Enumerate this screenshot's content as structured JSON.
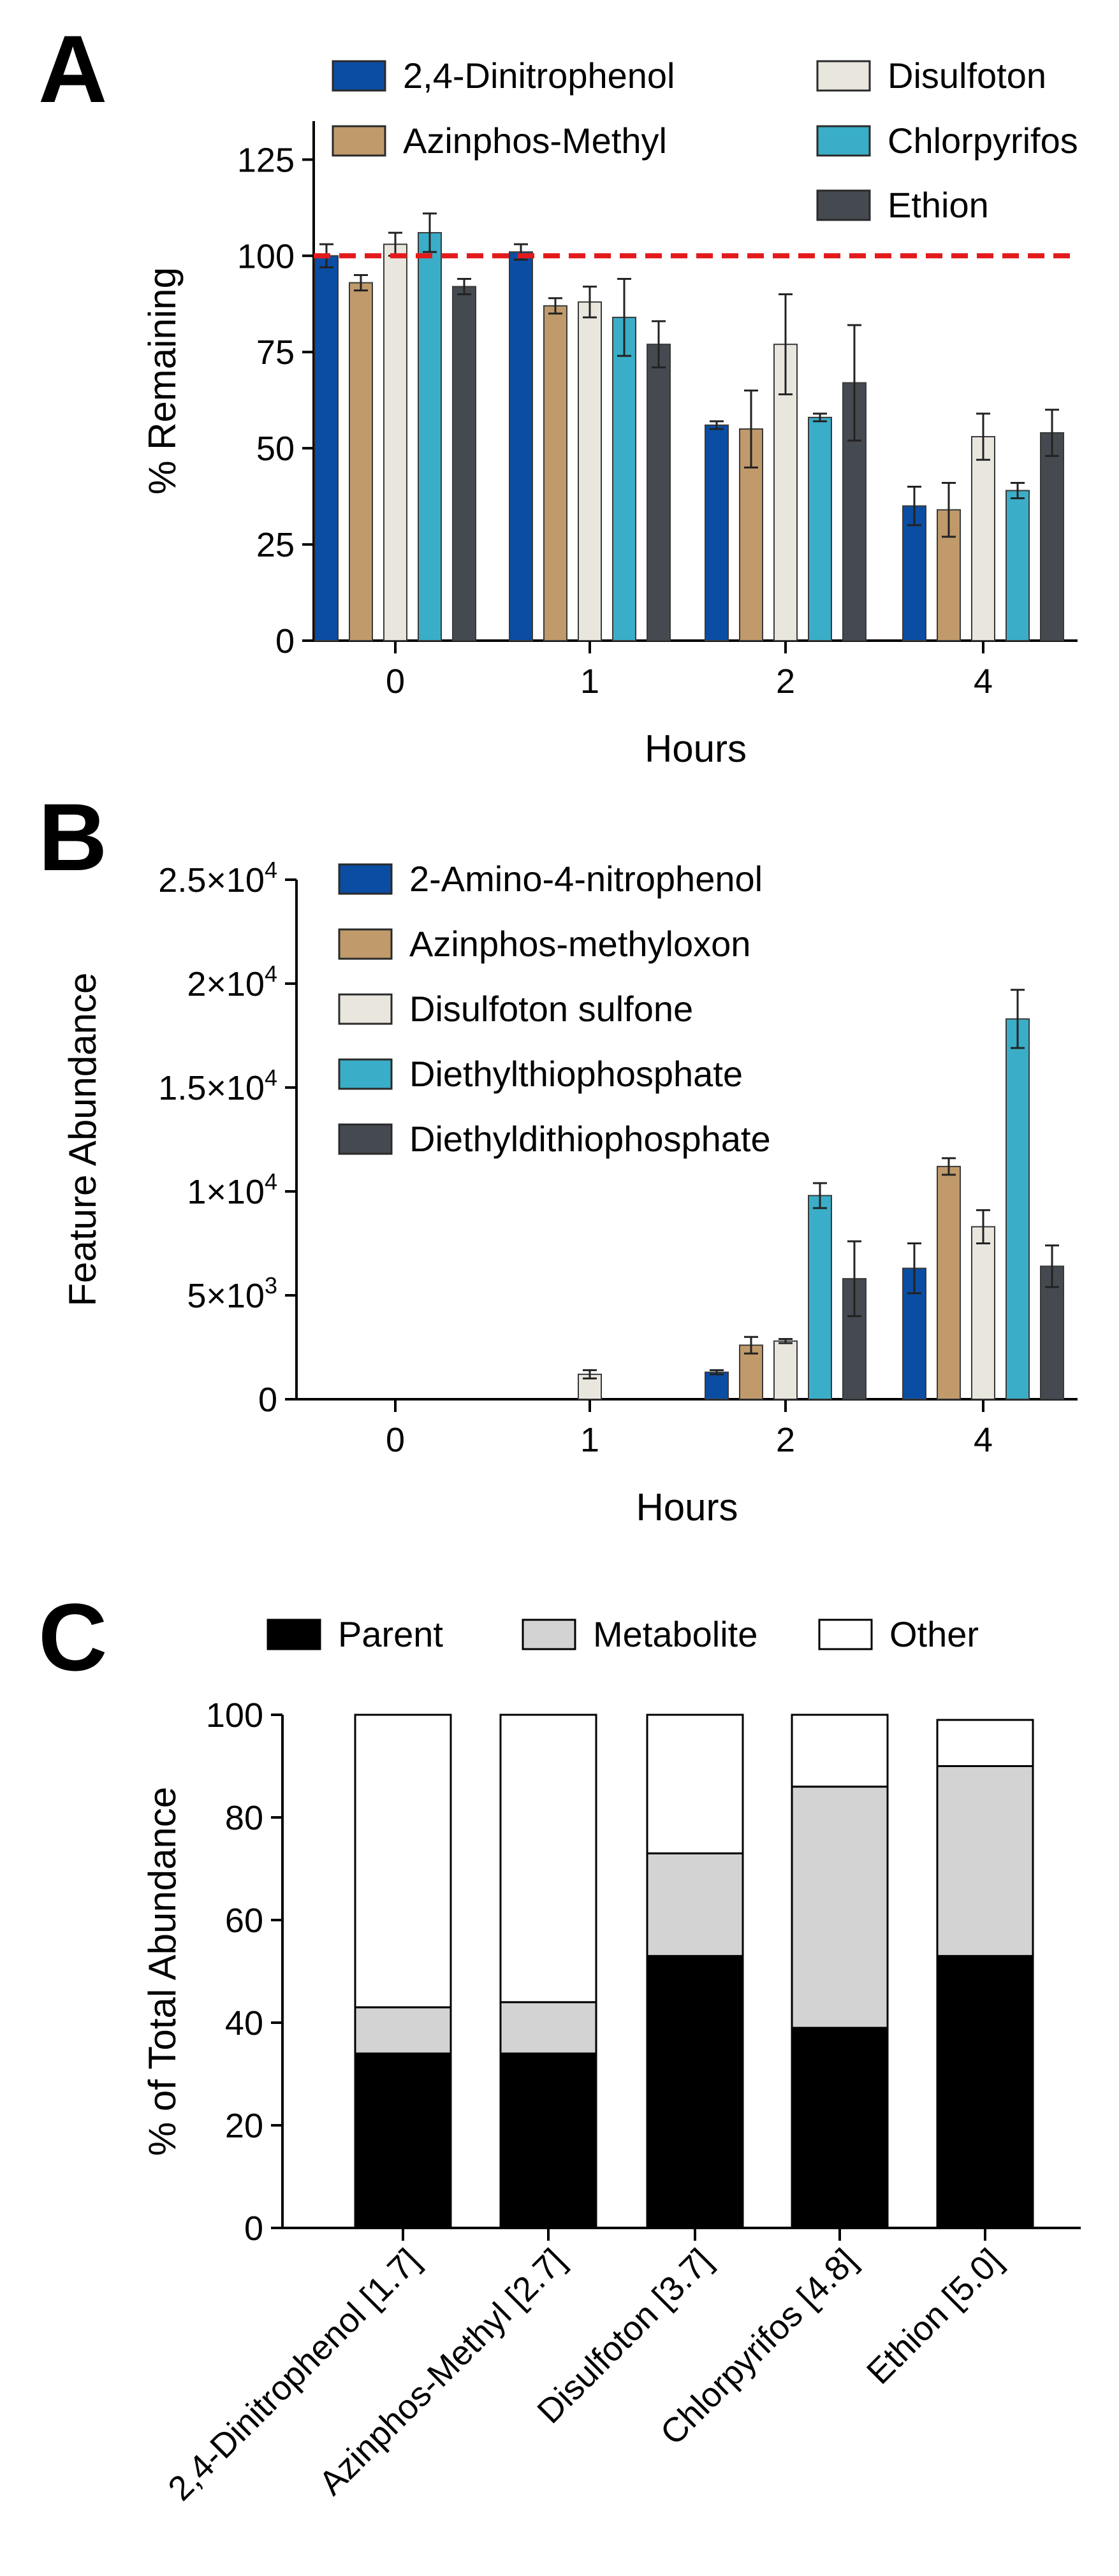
{
  "chart_data": [
    {
      "panel": "A",
      "type": "bar",
      "title": "",
      "xlabel": "Hours",
      "ylabel": "% Remaining",
      "categories": [
        "0",
        "1",
        "2",
        "4"
      ],
      "ylim": [
        0,
        135
      ],
      "yticks": [
        0,
        25,
        50,
        75,
        100,
        125
      ],
      "reference_line": {
        "value": 100,
        "color": "#e31a1c",
        "style": "dashed"
      },
      "legend_placement": "top-right",
      "series": [
        {
          "name": "2,4-Dinitrophenol",
          "color": "#0b4da2",
          "values": [
            100,
            101,
            56,
            35
          ],
          "errors": [
            3,
            2,
            1,
            5
          ]
        },
        {
          "name": "Azinphos-Methyl",
          "color": "#c09a6b",
          "values": [
            93,
            87,
            55,
            34
          ],
          "errors": [
            2,
            2,
            10,
            7
          ]
        },
        {
          "name": "Disulfoton",
          "color": "#e9e6de",
          "values": [
            103,
            88,
            77,
            53
          ],
          "errors": [
            3,
            4,
            13,
            6
          ]
        },
        {
          "name": "Chlorpyrifos",
          "color": "#3aaec8",
          "values": [
            106,
            84,
            58,
            39
          ],
          "errors": [
            5,
            10,
            1,
            2
          ]
        },
        {
          "name": "Ethion",
          "color": "#454a51",
          "values": [
            92,
            77,
            67,
            54
          ],
          "errors": [
            2,
            6,
            15,
            6
          ]
        }
      ]
    },
    {
      "panel": "B",
      "type": "bar",
      "title": "",
      "xlabel": "Hours",
      "ylabel": "Feature Abundance",
      "categories": [
        "0",
        "1",
        "2",
        "4"
      ],
      "ylim": [
        0,
        25000
      ],
      "yticks": [
        0,
        5000,
        10000,
        15000,
        20000,
        25000
      ],
      "ytick_labels": [
        {
          "base": "0",
          "exp": ""
        },
        {
          "base": "5×10",
          "exp": "3"
        },
        {
          "base": "1×10",
          "exp": "4"
        },
        {
          "base": "1.5×10",
          "exp": "4"
        },
        {
          "base": "2×10",
          "exp": "4"
        },
        {
          "base": "2.5×10",
          "exp": "4"
        }
      ],
      "legend_placement": "top-left",
      "series": [
        {
          "name": "2-Amino-4-nitrophenol",
          "color": "#0b4da2",
          "values": [
            0,
            0,
            1300,
            6300
          ],
          "errors": [
            0,
            0,
            100,
            1200
          ]
        },
        {
          "name": "Azinphos-methyloxon",
          "color": "#c09a6b",
          "values": [
            0,
            0,
            2600,
            11200
          ],
          "errors": [
            0,
            0,
            400,
            400
          ]
        },
        {
          "name": "Disulfoton sulfone",
          "color": "#e9e6de",
          "values": [
            0,
            1200,
            2800,
            8300
          ],
          "errors": [
            0,
            200,
            100,
            800
          ]
        },
        {
          "name": "Diethylthiophosphate",
          "color": "#3aaec8",
          "values": [
            0,
            0,
            9800,
            18300
          ],
          "errors": [
            0,
            0,
            600,
            1400
          ]
        },
        {
          "name": "Diethyldithiophosphate",
          "color": "#454a51",
          "values": [
            0,
            0,
            5800,
            6400
          ],
          "errors": [
            0,
            0,
            1800,
            1000
          ]
        }
      ]
    },
    {
      "panel": "C",
      "type": "bar",
      "stacked": true,
      "title": "",
      "xlabel": "",
      "ylabel": "% of Total Abundance",
      "categories": [
        "2,4-Dinitrophenol [1.7]",
        "Azinphos-Methyl [2.7]",
        "Disulfoton [3.7]",
        "Chlorpyrifos [4.8]",
        "Ethion [5.0]"
      ],
      "ylim": [
        0,
        100
      ],
      "yticks": [
        0,
        20,
        40,
        60,
        80,
        100
      ],
      "legend_placement": "top",
      "series": [
        {
          "name": "Parent",
          "color": "#000000",
          "values": [
            34,
            34,
            53,
            39,
            53
          ]
        },
        {
          "name": "Metabolite",
          "color": "#d3d3d3",
          "values": [
            9,
            10,
            20,
            47,
            37
          ]
        },
        {
          "name": "Other",
          "color": "#ffffff",
          "values": [
            57,
            56,
            27,
            14,
            9
          ]
        }
      ]
    }
  ]
}
